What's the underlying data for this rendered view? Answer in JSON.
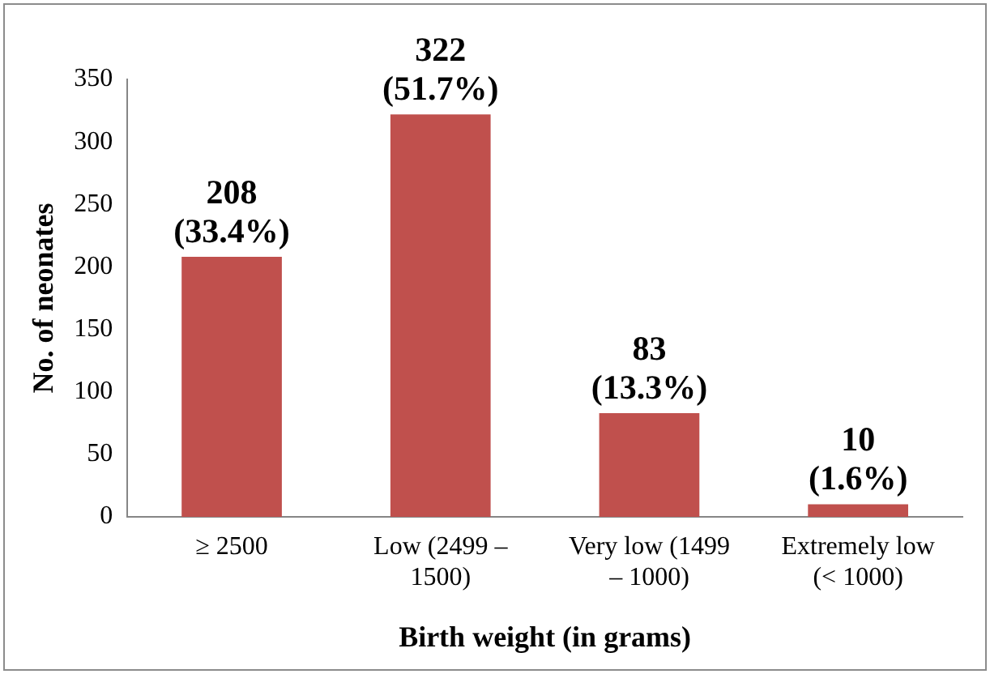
{
  "chart_data": {
    "type": "bar",
    "xlabel": "Birth weight (in grams)",
    "ylabel": "No. of neonates",
    "categories": [
      "≥ 2500",
      "Low (2499 – 1500)",
      "Very low (1499 – 1000)",
      "Extremely low (< 1000)"
    ],
    "values": [
      208,
      322,
      83,
      10
    ],
    "value_labels": [
      "208 (33.4%)",
      "322 (51.7%)",
      "83 (13.3%)",
      "10 (1.6%)"
    ],
    "color": "#c0504d",
    "ylim": [
      0,
      350
    ],
    "yticks": [
      0,
      50,
      100,
      150,
      200,
      250,
      300,
      350
    ],
    "grid": false,
    "legend": false
  }
}
